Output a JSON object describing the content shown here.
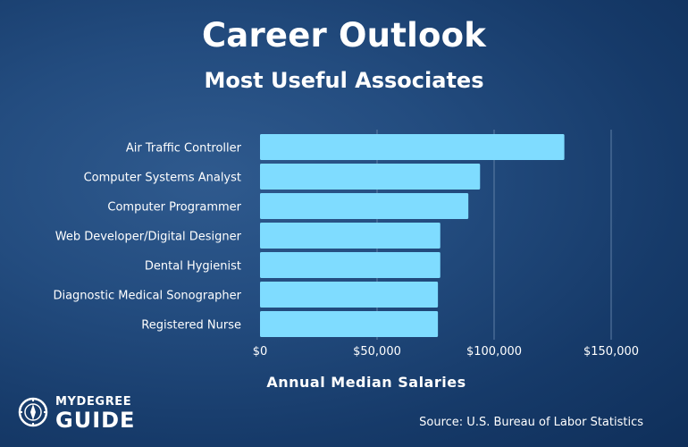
{
  "header": {
    "title": "Career Outlook",
    "subtitle": "Most Useful Associates"
  },
  "footer": {
    "source": "Source: U.S. Bureau of Labor Statistics",
    "logo_top": "MYDEGREE",
    "logo_bottom": "GUIDE"
  },
  "colors": {
    "bar": "#7fdcff",
    "grid": "#5f7fa6",
    "text": "#ffffff"
  },
  "chart_data": {
    "type": "bar",
    "orientation": "horizontal",
    "categories": [
      "Air Traffic Controller",
      "Computer Systems Analyst",
      "Computer Programmer",
      "Web Developer/Digital Designer",
      "Dental Hygienist",
      "Diagnostic Medical Sonographer",
      "Registered Nurse"
    ],
    "values": [
      130000,
      94000,
      89000,
      77000,
      77000,
      76000,
      76000
    ],
    "xlabel": "Annual Median Salaries",
    "ylabel": "",
    "xlim": [
      0,
      150000
    ],
    "xticks": [
      0,
      50000,
      100000,
      150000
    ],
    "xtick_labels": [
      "$0",
      "$50,000",
      "$100,000",
      "$150,000"
    ],
    "grid": true
  }
}
